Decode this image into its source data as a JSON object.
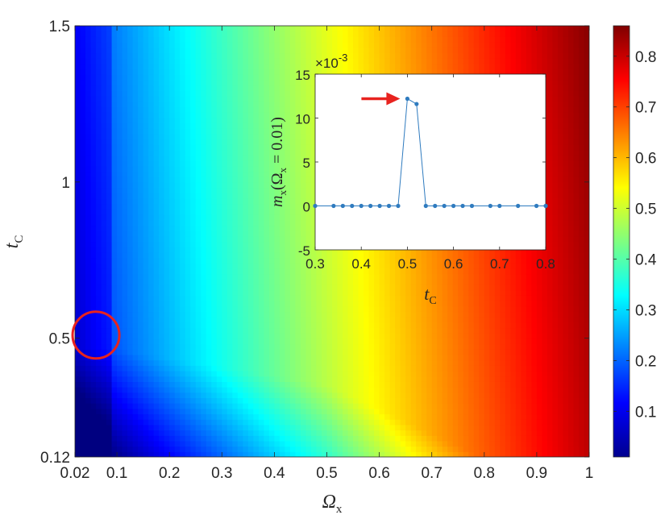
{
  "chart_data": [
    {
      "type": "heatmap",
      "xlabel": "Ωx",
      "ylabel": "tC",
      "x_ticks": [
        "0.02",
        "0.1",
        "0.2",
        "0.3",
        "0.4",
        "0.5",
        "0.6",
        "0.7",
        "0.8",
        "0.9",
        "1"
      ],
      "y_ticks": [
        "0.12",
        "0.5",
        "1",
        "1.5"
      ],
      "xlim": [
        0.02,
        1
      ],
      "ylim": [
        0.12,
        1.5
      ],
      "colorbar": {
        "ticks": [
          "0.1",
          "0.2",
          "0.3",
          "0.4",
          "0.5",
          "0.6",
          "0.7",
          "0.8"
        ],
        "range": [
          0.01,
          0.86
        ],
        "colormap": "jet"
      },
      "annotation": {
        "type": "circle",
        "x": 0.06,
        "y": 0.51,
        "color": "#e8231f"
      }
    },
    {
      "type": "line",
      "inset": true,
      "xlabel": "tC",
      "ylabel": "mx(Ωx = 0.01)",
      "exponent_label": "×10",
      "exponent_power": "-3",
      "xlim": [
        0.3,
        0.8
      ],
      "ylim": [
        -5,
        15
      ],
      "x_ticks": [
        "0.3",
        "0.4",
        "0.5",
        "0.6",
        "0.7",
        "0.8"
      ],
      "y_ticks": [
        "-5",
        "0",
        "5",
        "10",
        "15"
      ],
      "series": [
        {
          "color": "#2f7bbf",
          "x": [
            0.3,
            0.34,
            0.36,
            0.38,
            0.4,
            0.42,
            0.44,
            0.46,
            0.48,
            0.5,
            0.52,
            0.54,
            0.56,
            0.58,
            0.6,
            0.62,
            0.64,
            0.68,
            0.7,
            0.74,
            0.78,
            0.8
          ],
          "y": [
            0,
            0,
            0,
            0,
            0,
            0,
            0,
            0,
            0,
            12.2,
            11.6,
            0,
            0,
            0,
            0,
            0,
            0,
            0,
            0,
            0,
            0,
            0
          ]
        }
      ],
      "annotation": {
        "type": "arrow",
        "x": 0.5,
        "y": 12.2,
        "color": "#e8231f"
      }
    }
  ]
}
